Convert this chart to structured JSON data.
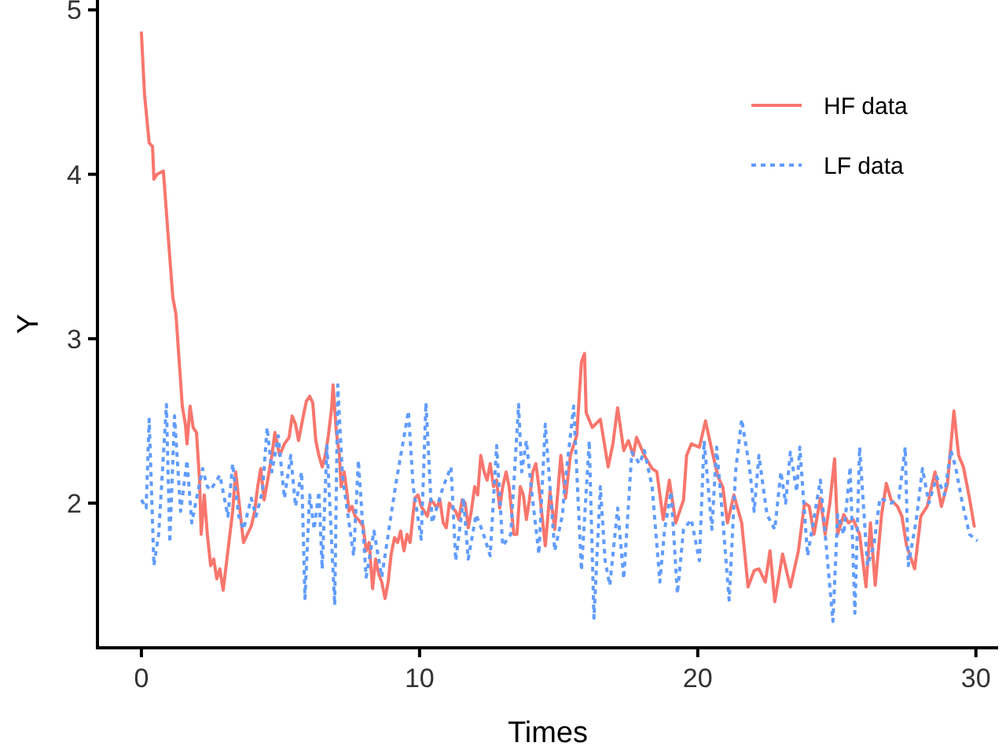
{
  "chart_data": {
    "type": "line",
    "xlabel": "Times",
    "ylabel": "Y",
    "xlim": [
      -1.58,
      30.8
    ],
    "ylim": [
      1.12,
      5.06
    ],
    "xticks": [
      0,
      10,
      20,
      30
    ],
    "yticks": [
      2,
      3,
      4,
      5
    ],
    "grid": false,
    "legend": "top right",
    "marker": "none",
    "series": [
      {
        "name": "HF data",
        "color": "#f8766d",
        "line_style": "solid",
        "x": [
          0,
          0.11,
          0.28,
          0.4,
          0.45,
          0.56,
          0.79,
          0.96,
          1.13,
          1.24,
          1.36,
          1.47,
          1.58,
          1.64,
          1.75,
          1.86,
          1.98,
          2.09,
          2.15,
          2.26,
          2.37,
          2.49,
          2.6,
          2.71,
          2.82,
          2.94,
          3.11,
          3.28,
          3.39,
          3.5,
          3.67,
          3.95,
          4.07,
          4.18,
          4.29,
          4.41,
          4.52,
          4.69,
          4.8,
          4.97,
          5.14,
          5.31,
          5.42,
          5.54,
          5.65,
          5.82,
          5.93,
          6.05,
          6.16,
          6.27,
          6.38,
          6.5,
          6.61,
          6.72,
          6.84,
          6.89,
          7.01,
          7.12,
          7.18,
          7.29,
          7.4,
          7.46,
          7.57,
          7.68,
          7.8,
          7.97,
          8.08,
          8.19,
          8.31,
          8.42,
          8.53,
          8.64,
          8.76,
          8.87,
          8.98,
          9.1,
          9.21,
          9.32,
          9.44,
          9.55,
          9.66,
          9.83,
          9.94,
          10.06,
          10.17,
          10.28,
          10.4,
          10.51,
          10.62,
          10.73,
          10.85,
          10.96,
          11.07,
          11.19,
          11.3,
          11.41,
          11.53,
          11.64,
          11.75,
          11.86,
          11.98,
          12.09,
          12.2,
          12.32,
          12.43,
          12.54,
          12.66,
          12.77,
          12.88,
          12.99,
          13.11,
          13.22,
          13.39,
          13.5,
          13.62,
          13.73,
          13.84,
          13.95,
          14.07,
          14.18,
          14.29,
          14.52,
          14.69,
          14.86,
          15.08,
          15.25,
          15.42,
          15.65,
          15.82,
          15.93,
          15.99,
          16.21,
          16.5,
          16.78,
          16.95,
          17.12,
          17.34,
          17.51,
          17.68,
          17.8,
          18.08,
          18.36,
          18.53,
          18.76,
          18.98,
          19.21,
          19.49,
          19.6,
          19.77,
          20.06,
          20.28,
          20.51,
          20.73,
          20.9,
          21.07,
          21.3,
          21.58,
          21.81,
          22.03,
          22.2,
          22.43,
          22.6,
          22.77,
          23.05,
          23.33,
          23.62,
          23.84,
          24.01,
          24.18,
          24.41,
          24.58,
          24.75,
          24.92,
          25.03,
          25.25,
          25.42,
          25.59,
          25.82,
          26.05,
          26.21,
          26.38,
          26.61,
          26.78,
          26.95,
          27.18,
          27.34,
          27.51,
          27.8,
          28.02,
          28.25,
          28.53,
          28.76,
          28.98,
          29.21,
          29.38,
          29.55,
          29.77,
          29.94
        ],
        "values": [
          4.86,
          4.49,
          4.19,
          4.17,
          3.97,
          4.0,
          4.02,
          3.63,
          3.25,
          3.15,
          2.86,
          2.59,
          2.48,
          2.36,
          2.59,
          2.46,
          2.43,
          2.14,
          1.81,
          2.05,
          1.81,
          1.62,
          1.66,
          1.54,
          1.6,
          1.47,
          1.71,
          1.95,
          2.19,
          2.02,
          1.76,
          1.86,
          1.95,
          2.1,
          2.21,
          2.02,
          2.12,
          2.29,
          2.43,
          2.29,
          2.36,
          2.4,
          2.53,
          2.48,
          2.38,
          2.53,
          2.62,
          2.65,
          2.61,
          2.38,
          2.29,
          2.22,
          2.29,
          2.41,
          2.58,
          2.72,
          2.43,
          2.29,
          2.1,
          2.19,
          2.05,
          1.95,
          1.98,
          1.92,
          1.9,
          1.86,
          1.71,
          1.76,
          1.48,
          1.66,
          1.57,
          1.52,
          1.42,
          1.52,
          1.69,
          1.79,
          1.76,
          1.83,
          1.71,
          1.81,
          1.76,
          2.03,
          2.05,
          1.98,
          1.95,
          1.92,
          2.02,
          2.0,
          1.97,
          2.02,
          1.88,
          1.85,
          2.0,
          1.97,
          1.95,
          1.9,
          2.02,
          2.0,
          1.85,
          1.95,
          2.1,
          2.05,
          2.29,
          2.19,
          2.14,
          2.24,
          2.1,
          2.14,
          1.97,
          2.1,
          2.19,
          2.1,
          1.81,
          1.81,
          2.1,
          2.05,
          1.9,
          2.02,
          2.19,
          2.24,
          2.1,
          1.74,
          2.07,
          1.84,
          2.29,
          2.03,
          2.29,
          2.41,
          2.86,
          2.91,
          2.55,
          2.46,
          2.51,
          2.22,
          2.36,
          2.58,
          2.32,
          2.38,
          2.29,
          2.4,
          2.29,
          2.21,
          2.19,
          1.9,
          2.14,
          1.88,
          2.02,
          2.29,
          2.36,
          2.34,
          2.5,
          2.32,
          2.16,
          2.1,
          1.88,
          2.05,
          1.88,
          1.49,
          1.59,
          1.6,
          1.52,
          1.71,
          1.4,
          1.69,
          1.49,
          1.71,
          2.0,
          1.98,
          1.81,
          2.03,
          1.81,
          2.0,
          2.27,
          1.81,
          1.93,
          1.88,
          1.9,
          1.81,
          1.49,
          1.88,
          1.5,
          1.93,
          2.12,
          2.02,
          1.98,
          1.92,
          1.74,
          1.6,
          1.92,
          1.98,
          2.19,
          1.98,
          2.12,
          2.56,
          2.29,
          2.22,
          2.03,
          1.86
        ]
      },
      {
        "name": "LF data",
        "color": "#619cff",
        "line_style": "dotted",
        "x": [
          0,
          0.17,
          0.28,
          0.45,
          0.62,
          0.9,
          1.02,
          1.19,
          1.41,
          1.64,
          1.81,
          2.2,
          2.37,
          2.49,
          2.82,
          3.11,
          3.28,
          3.5,
          3.67,
          3.95,
          4.12,
          4.35,
          4.52,
          4.69,
          4.92,
          5.14,
          5.37,
          5.54,
          5.76,
          5.88,
          6.05,
          6.21,
          6.38,
          6.5,
          6.67,
          6.95,
          7.06,
          7.23,
          7.34,
          7.63,
          7.8,
          8.08,
          8.36,
          8.64,
          9.15,
          9.6,
          9.77,
          10.06,
          10.23,
          10.45,
          10.85,
          11.13,
          11.3,
          11.58,
          11.75,
          12.03,
          12.26,
          12.54,
          12.77,
          12.99,
          13.28,
          13.56,
          13.67,
          13.84,
          14.01,
          14.29,
          14.52,
          14.86,
          15.14,
          15.2,
          15.54,
          15.82,
          16.1,
          16.27,
          16.5,
          16.67,
          16.84,
          17.12,
          17.34,
          17.63,
          17.91,
          18.08,
          18.36,
          18.64,
          18.81,
          19.04,
          19.27,
          19.49,
          19.77,
          20.06,
          20.23,
          20.51,
          20.68,
          20.9,
          21.13,
          21.36,
          21.58,
          21.86,
          22.03,
          22.2,
          22.49,
          22.77,
          22.99,
          23.16,
          23.33,
          23.56,
          23.67,
          23.95,
          24.41,
          24.86,
          25.03,
          25.25,
          25.48,
          25.65,
          25.82,
          26.1,
          26.33,
          26.55,
          26.95,
          27.23,
          27.46,
          27.57,
          27.85,
          28.08,
          28.31,
          28.59,
          28.87,
          29.1,
          29.27,
          29.49,
          29.77,
          30.06
        ],
        "values": [
          2.02,
          1.97,
          2.51,
          1.62,
          1.81,
          2.6,
          1.76,
          2.53,
          1.95,
          2.26,
          1.88,
          2.21,
          2.1,
          2.08,
          2.17,
          1.92,
          2.24,
          1.92,
          1.84,
          2.03,
          1.92,
          2.07,
          2.46,
          2.19,
          2.41,
          2.03,
          2.29,
          1.98,
          2.19,
          1.42,
          2.05,
          1.84,
          2.07,
          1.6,
          2.35,
          1.38,
          2.72,
          2.16,
          2.03,
          1.68,
          2.26,
          1.55,
          1.83,
          1.55,
          2.12,
          2.56,
          2.1,
          1.78,
          2.61,
          1.88,
          2.1,
          2.22,
          1.65,
          2.03,
          1.66,
          1.93,
          1.83,
          1.68,
          2.35,
          1.74,
          1.81,
          2.6,
          2.19,
          2.38,
          2.1,
          1.69,
          2.48,
          1.71,
          1.93,
          2.07,
          2.59,
          1.59,
          2.38,
          1.3,
          2.1,
          1.65,
          1.5,
          1.97,
          1.54,
          2.31,
          2.24,
          2.32,
          2.1,
          1.52,
          1.84,
          2.07,
          1.45,
          1.84,
          1.9,
          1.65,
          2.38,
          1.84,
          2.34,
          1.9,
          1.41,
          2.19,
          2.51,
          2.22,
          1.95,
          2.29,
          1.93,
          1.84,
          2.19,
          2.0,
          2.31,
          2.07,
          2.34,
          1.68,
          2.14,
          1.28,
          1.93,
          1.81,
          2.22,
          1.33,
          2.34,
          1.62,
          1.74,
          2.03,
          2.0,
          2.03,
          2.34,
          1.62,
          1.89,
          2.21,
          2.0,
          2.16,
          2.05,
          2.32,
          2.22,
          2.02,
          1.81,
          1.77
        ]
      }
    ]
  }
}
